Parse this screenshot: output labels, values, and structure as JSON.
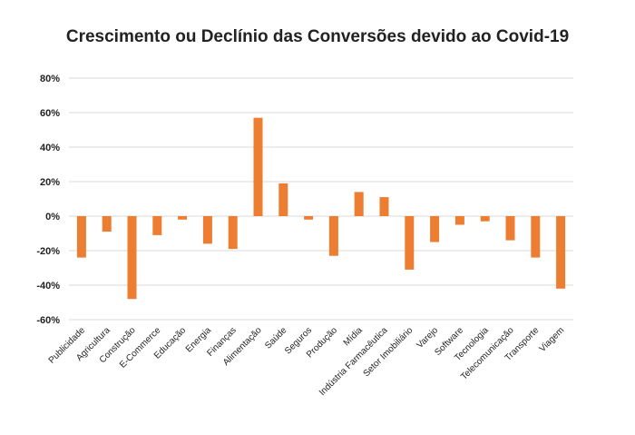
{
  "chart_data": {
    "type": "bar",
    "title": "Crescimento ou Declínio das Conversões devido ao Covid-19",
    "xlabel": "",
    "ylabel": "",
    "ylim": [
      -60,
      80
    ],
    "yticks": [
      80,
      60,
      40,
      20,
      0,
      -20,
      -40,
      -60
    ],
    "ytick_labels": [
      "80%",
      "60%",
      "40%",
      "20%",
      "0%",
      "-20%",
      "-40%",
      "-60%"
    ],
    "grid": true,
    "bar_color": "#ED7D31",
    "categories": [
      "Publicidade",
      "Agricultura",
      "Construção",
      "E-Commerce",
      "Educação",
      "Energia",
      "Finanças",
      "Alimentação",
      "Saúde",
      "Seguros",
      "Produção",
      "Mídia",
      "Indústria Farmacêutica",
      "Setor Imobiliário",
      "Varejo",
      "Software",
      "Tecnologia",
      "Telecomunicação",
      "Transporte",
      "Viagem"
    ],
    "values": [
      -24,
      -9,
      -48,
      -11,
      -2,
      -16,
      -19,
      57,
      19,
      -2,
      -23,
      14,
      11,
      -31,
      -15,
      -5,
      -3,
      -14,
      -24,
      -42
    ]
  }
}
